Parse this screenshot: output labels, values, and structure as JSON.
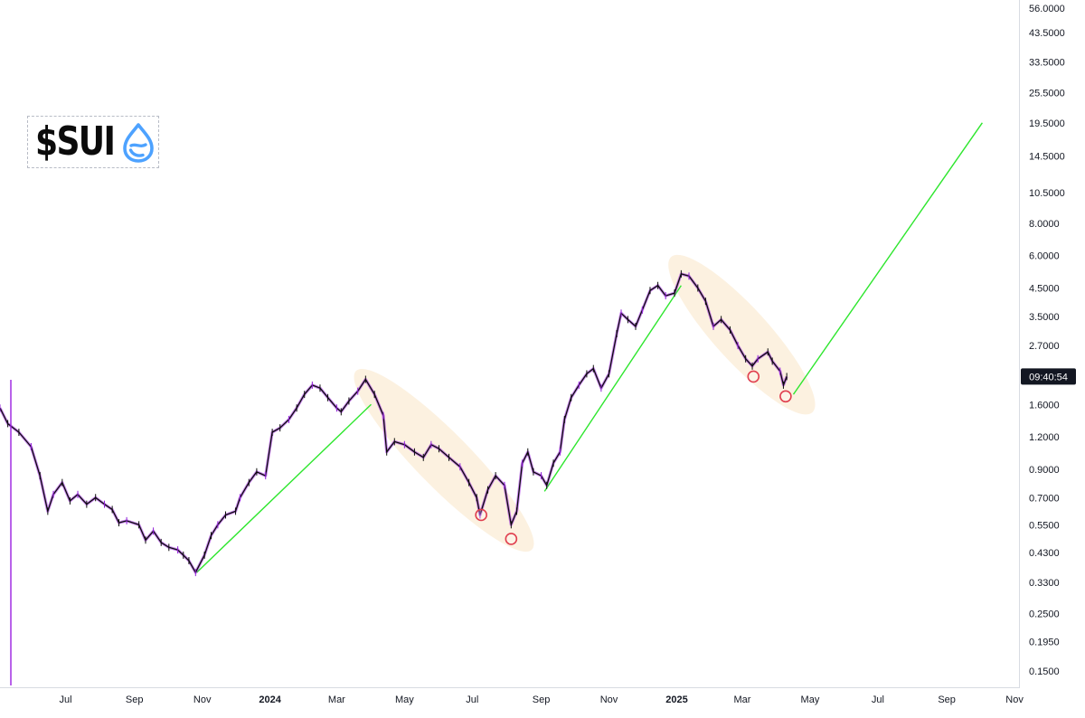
{
  "chart_data": {
    "type": "line",
    "title": "",
    "xlabel": "",
    "ylabel": "",
    "y_scale": "log",
    "ylim": [
      0.13,
      58
    ],
    "xlim": [
      "2023-05-03",
      "2025-11-05"
    ],
    "y_ticks": [
      "56.0000",
      "43.5000",
      "33.5000",
      "25.5000",
      "19.5000",
      "14.5000",
      "10.5000",
      "8.0000",
      "6.0000",
      "4.5000",
      "3.5000",
      "2.7000",
      "1.6000",
      "1.2000",
      "0.9000",
      "0.7000",
      "0.5500",
      "0.4300",
      "0.3300",
      "0.2500",
      "0.1950",
      "0.1500"
    ],
    "x_ticks": [
      {
        "label": "Jul",
        "date": "2023-07-01"
      },
      {
        "label": "Sep",
        "date": "2023-09-01"
      },
      {
        "label": "Nov",
        "date": "2023-11-01"
      },
      {
        "label": "2024",
        "date": "2024-01-01",
        "bold": true
      },
      {
        "label": "Mar",
        "date": "2024-03-01"
      },
      {
        "label": "May",
        "date": "2024-05-01"
      },
      {
        "label": "Jul",
        "date": "2024-07-01"
      },
      {
        "label": "Sep",
        "date": "2024-09-01"
      },
      {
        "label": "Nov",
        "date": "2024-11-01"
      },
      {
        "label": "2025",
        "date": "2025-01-01",
        "bold": true
      },
      {
        "label": "Mar",
        "date": "2025-03-01"
      },
      {
        "label": "May",
        "date": "2025-05-01"
      },
      {
        "label": "Jul",
        "date": "2025-07-01"
      },
      {
        "label": "Sep",
        "date": "2025-09-01"
      },
      {
        "label": "Nov",
        "date": "2025-11-01"
      }
    ],
    "price_label": "09:40:54",
    "price_label_value": 2.05,
    "series": [
      {
        "style": "price",
        "color": "#0d0d0d",
        "points": [
          [
            "2023-05-03",
            1.55
          ],
          [
            "2023-05-10",
            1.35
          ],
          [
            "2023-05-20",
            1.25
          ],
          [
            "2023-05-31",
            1.1
          ],
          [
            "2023-06-08",
            0.85
          ],
          [
            "2023-06-15",
            0.62
          ],
          [
            "2023-06-20",
            0.72
          ],
          [
            "2023-06-28",
            0.8
          ],
          [
            "2023-07-05",
            0.68
          ],
          [
            "2023-07-12",
            0.72
          ],
          [
            "2023-07-20",
            0.66
          ],
          [
            "2023-07-28",
            0.7
          ],
          [
            "2023-08-05",
            0.66
          ],
          [
            "2023-08-12",
            0.63
          ],
          [
            "2023-08-18",
            0.56
          ],
          [
            "2023-08-25",
            0.57
          ],
          [
            "2023-09-05",
            0.55
          ],
          [
            "2023-09-11",
            0.48
          ],
          [
            "2023-09-18",
            0.52
          ],
          [
            "2023-09-25",
            0.47
          ],
          [
            "2023-10-02",
            0.45
          ],
          [
            "2023-10-10",
            0.44
          ],
          [
            "2023-10-15",
            0.42
          ],
          [
            "2023-10-20",
            0.4
          ],
          [
            "2023-10-26",
            0.36
          ],
          [
            "2023-11-03",
            0.42
          ],
          [
            "2023-11-09",
            0.5
          ],
          [
            "2023-11-15",
            0.55
          ],
          [
            "2023-11-22",
            0.6
          ],
          [
            "2023-12-01",
            0.62
          ],
          [
            "2023-12-05",
            0.7
          ],
          [
            "2023-12-13",
            0.8
          ],
          [
            "2023-12-20",
            0.88
          ],
          [
            "2023-12-28",
            0.85
          ],
          [
            "2024-01-03",
            1.25
          ],
          [
            "2024-01-10",
            1.3
          ],
          [
            "2024-01-18",
            1.4
          ],
          [
            "2024-01-25",
            1.55
          ],
          [
            "2024-02-01",
            1.75
          ],
          [
            "2024-02-08",
            1.9
          ],
          [
            "2024-02-15",
            1.85
          ],
          [
            "2024-02-22",
            1.7
          ],
          [
            "2024-03-01",
            1.55
          ],
          [
            "2024-03-05",
            1.5
          ],
          [
            "2024-03-12",
            1.65
          ],
          [
            "2024-03-20",
            1.8
          ],
          [
            "2024-03-27",
            2.0
          ],
          [
            "2024-04-04",
            1.75
          ],
          [
            "2024-04-12",
            1.45
          ],
          [
            "2024-04-15",
            1.05
          ],
          [
            "2024-04-22",
            1.15
          ],
          [
            "2024-05-01",
            1.12
          ],
          [
            "2024-05-10",
            1.05
          ],
          [
            "2024-05-18",
            1.0
          ],
          [
            "2024-05-25",
            1.12
          ],
          [
            "2024-06-01",
            1.08
          ],
          [
            "2024-06-10",
            1.0
          ],
          [
            "2024-06-20",
            0.92
          ],
          [
            "2024-06-28",
            0.8
          ],
          [
            "2024-07-05",
            0.7
          ],
          [
            "2024-07-08",
            0.6
          ],
          [
            "2024-07-15",
            0.75
          ],
          [
            "2024-07-22",
            0.85
          ],
          [
            "2024-07-30",
            0.78
          ],
          [
            "2024-08-05",
            0.55
          ],
          [
            "2024-08-10",
            0.62
          ],
          [
            "2024-08-15",
            0.95
          ],
          [
            "2024-08-20",
            1.05
          ],
          [
            "2024-08-25",
            0.88
          ],
          [
            "2024-09-01",
            0.85
          ],
          [
            "2024-09-06",
            0.78
          ],
          [
            "2024-09-12",
            0.95
          ],
          [
            "2024-09-18",
            1.05
          ],
          [
            "2024-09-22",
            1.4
          ],
          [
            "2024-09-28",
            1.7
          ],
          [
            "2024-10-05",
            1.9
          ],
          [
            "2024-10-12",
            2.1
          ],
          [
            "2024-10-18",
            2.2
          ],
          [
            "2024-10-25",
            1.85
          ],
          [
            "2024-11-01",
            2.1
          ],
          [
            "2024-11-08",
            3.0
          ],
          [
            "2024-11-12",
            3.6
          ],
          [
            "2024-11-18",
            3.4
          ],
          [
            "2024-11-25",
            3.2
          ],
          [
            "2024-12-01",
            3.7
          ],
          [
            "2024-12-08",
            4.4
          ],
          [
            "2024-12-15",
            4.6
          ],
          [
            "2024-12-22",
            4.2
          ],
          [
            "2024-12-30",
            4.3
          ],
          [
            "2025-01-05",
            5.1
          ],
          [
            "2025-01-12",
            5.0
          ],
          [
            "2025-01-20",
            4.5
          ],
          [
            "2025-01-27",
            4.0
          ],
          [
            "2025-02-03",
            3.2
          ],
          [
            "2025-02-10",
            3.4
          ],
          [
            "2025-02-18",
            3.1
          ],
          [
            "2025-02-25",
            2.7
          ],
          [
            "2025-03-04",
            2.4
          ],
          [
            "2025-03-10",
            2.25
          ],
          [
            "2025-03-15",
            2.4
          ],
          [
            "2025-03-24",
            2.55
          ],
          [
            "2025-03-28",
            2.35
          ],
          [
            "2025-04-04",
            2.15
          ],
          [
            "2025-04-07",
            1.9
          ],
          [
            "2025-04-10",
            2.05
          ]
        ]
      },
      {
        "style": "projection",
        "color": "#2ee62e",
        "points": [
          [
            "2025-04-16",
            1.75
          ],
          [
            "2025-10-03",
            19.5
          ]
        ]
      }
    ],
    "trendlines": [
      {
        "color": "#2ee62e",
        "points": [
          [
            "2023-10-27",
            0.36
          ],
          [
            "2024-04-01",
            1.6
          ]
        ]
      },
      {
        "color": "#2ee62e",
        "points": [
          [
            "2024-09-04",
            0.74
          ],
          [
            "2025-01-05",
            4.6
          ]
        ]
      }
    ],
    "highlight_zones": [
      {
        "color": "#fbecd6",
        "points": [
          [
            "2024-03-31",
            1.9
          ],
          [
            "2024-08-11",
            0.5
          ]
        ]
      },
      {
        "color": "#fbecd6",
        "points": [
          [
            "2025-01-08",
            5.2
          ],
          [
            "2025-04-21",
            1.7
          ]
        ]
      }
    ],
    "markers": [
      {
        "date": "2024-07-09",
        "value": 0.6,
        "color": "#e03e4e"
      },
      {
        "date": "2024-08-05",
        "value": 0.485,
        "color": "#e03e4e"
      },
      {
        "date": "2025-03-11",
        "value": 2.05,
        "color": "#e03e4e"
      },
      {
        "date": "2025-04-09",
        "value": 1.72,
        "color": "#e03e4e"
      }
    ]
  },
  "logo": {
    "text": "$SUI",
    "icon": "sui-drop-icon",
    "icon_color": "#4da2ff"
  }
}
